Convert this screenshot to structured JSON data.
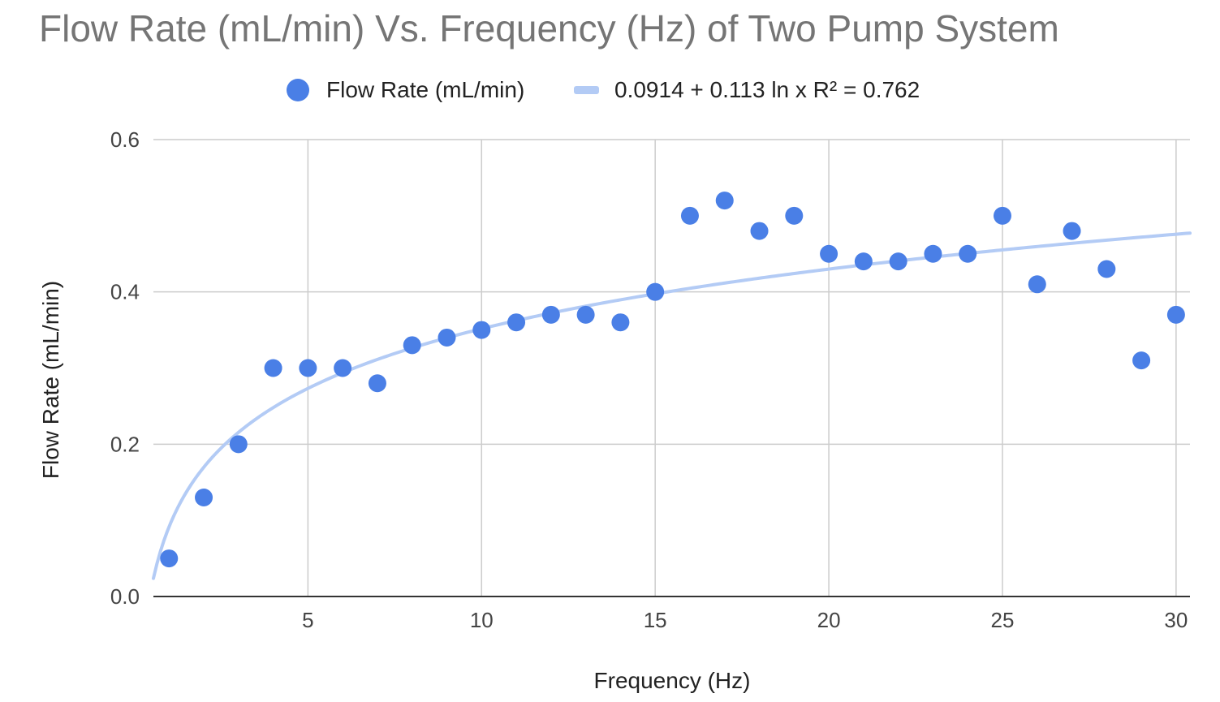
{
  "chart_data": {
    "type": "scatter",
    "title": "Flow Rate (mL/min) Vs. Frequency (Hz) of Two Pump System",
    "xlabel": "Frequency (Hz)",
    "ylabel": "Flow Rate (mL/min)",
    "xlim": [
      0.55,
      30.4
    ],
    "ylim": [
      0,
      0.6
    ],
    "xticks": [
      5,
      10,
      15,
      20,
      25,
      30
    ],
    "xtick_labels": [
      "5",
      "10",
      "15",
      "20",
      "25",
      "30"
    ],
    "yticks": [
      0,
      0.2,
      0.4,
      0.6
    ],
    "ytick_labels": [
      "0.0",
      "0.2",
      "0.4",
      "0.6"
    ],
    "grid": true,
    "legend_position": "top",
    "series": [
      {
        "name": "Flow Rate (mL/min)",
        "color": "#4a7fe6",
        "x": [
          1,
          2,
          3,
          4,
          5,
          6,
          7,
          8,
          9,
          10,
          11,
          12,
          13,
          14,
          15,
          16,
          17,
          18,
          19,
          20,
          21,
          22,
          23,
          24,
          25,
          26,
          27,
          28,
          29,
          30
        ],
        "y": [
          0.05,
          0.13,
          0.2,
          0.3,
          0.3,
          0.3,
          0.28,
          0.33,
          0.34,
          0.35,
          0.36,
          0.37,
          0.37,
          0.36,
          0.4,
          0.5,
          0.52,
          0.48,
          0.5,
          0.45,
          0.44,
          0.44,
          0.45,
          0.45,
          0.5,
          0.41,
          0.48,
          0.43,
          0.31,
          0.37
        ]
      }
    ],
    "trendline": {
      "name": "0.0914 + 0.113 ln x R² = 0.762",
      "color": "#b3cbf5",
      "type": "logarithmic",
      "intercept": 0.0914,
      "coefficient": 0.113,
      "r_squared": 0.762
    }
  }
}
